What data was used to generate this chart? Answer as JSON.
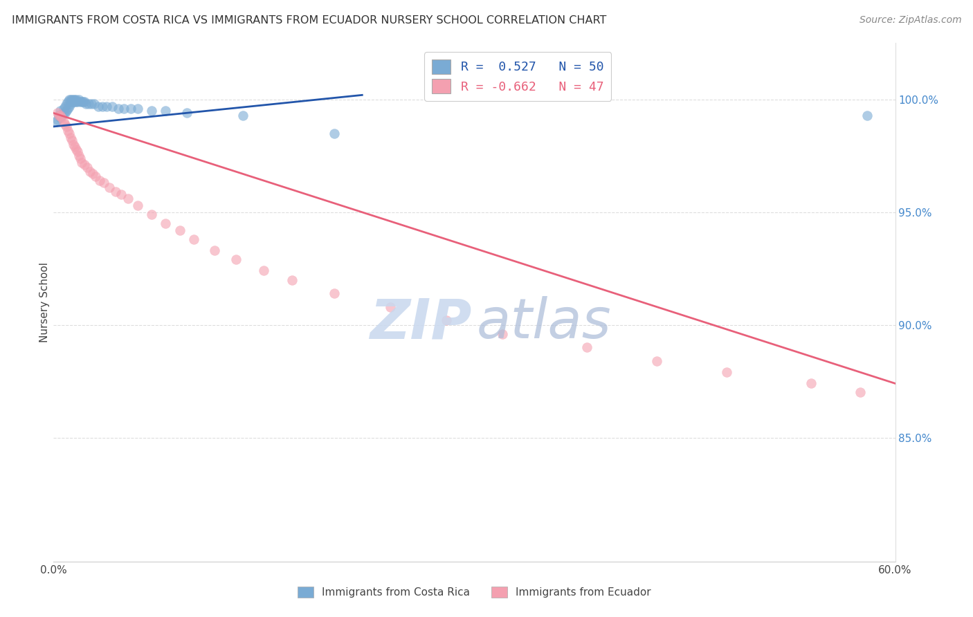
{
  "title": "IMMIGRANTS FROM COSTA RICA VS IMMIGRANTS FROM ECUADOR NURSERY SCHOOL CORRELATION CHART",
  "source_text": "Source: ZipAtlas.com",
  "ylabel": "Nursery School",
  "ytick_values": [
    1.0,
    0.95,
    0.9,
    0.85
  ],
  "xlim": [
    0.0,
    0.6
  ],
  "ylim": [
    0.795,
    1.025
  ],
  "blue_color": "#7AABD4",
  "pink_color": "#F4A0B0",
  "blue_line_color": "#2255AA",
  "pink_line_color": "#E8607A",
  "grid_color": "#DDDDDD",
  "background_color": "#FFFFFF",
  "blue_scatter_x": [
    0.002,
    0.003,
    0.004,
    0.005,
    0.005,
    0.006,
    0.007,
    0.007,
    0.008,
    0.008,
    0.009,
    0.009,
    0.01,
    0.01,
    0.011,
    0.011,
    0.012,
    0.012,
    0.013,
    0.013,
    0.014,
    0.014,
    0.015,
    0.015,
    0.016,
    0.016,
    0.017,
    0.018,
    0.019,
    0.02,
    0.021,
    0.022,
    0.023,
    0.025,
    0.027,
    0.029,
    0.032,
    0.035,
    0.038,
    0.042,
    0.046,
    0.05,
    0.055,
    0.06,
    0.07,
    0.08,
    0.095,
    0.135,
    0.2,
    0.58
  ],
  "blue_scatter_y": [
    0.99,
    0.991,
    0.993,
    0.992,
    0.995,
    0.993,
    0.994,
    0.996,
    0.994,
    0.997,
    0.995,
    0.998,
    0.996,
    0.999,
    0.997,
    1.0,
    0.998,
    1.0,
    0.999,
    1.0,
    0.999,
    1.0,
    0.999,
    1.0,
    0.999,
    1.0,
    0.999,
    1.0,
    0.999,
    0.999,
    0.999,
    0.999,
    0.998,
    0.998,
    0.998,
    0.998,
    0.997,
    0.997,
    0.997,
    0.997,
    0.996,
    0.996,
    0.996,
    0.996,
    0.995,
    0.995,
    0.994,
    0.993,
    0.985,
    0.993
  ],
  "pink_scatter_x": [
    0.003,
    0.004,
    0.005,
    0.006,
    0.007,
    0.008,
    0.009,
    0.01,
    0.011,
    0.012,
    0.013,
    0.014,
    0.015,
    0.016,
    0.017,
    0.018,
    0.019,
    0.02,
    0.022,
    0.024,
    0.026,
    0.028,
    0.03,
    0.033,
    0.036,
    0.04,
    0.044,
    0.048,
    0.053,
    0.06,
    0.07,
    0.08,
    0.09,
    0.1,
    0.115,
    0.13,
    0.15,
    0.17,
    0.2,
    0.24,
    0.28,
    0.32,
    0.38,
    0.43,
    0.48,
    0.54,
    0.575
  ],
  "pink_scatter_y": [
    0.994,
    0.993,
    0.993,
    0.992,
    0.99,
    0.989,
    0.988,
    0.986,
    0.985,
    0.983,
    0.982,
    0.98,
    0.979,
    0.978,
    0.977,
    0.975,
    0.974,
    0.972,
    0.971,
    0.97,
    0.968,
    0.967,
    0.966,
    0.964,
    0.963,
    0.961,
    0.959,
    0.958,
    0.956,
    0.953,
    0.949,
    0.945,
    0.942,
    0.938,
    0.933,
    0.929,
    0.924,
    0.92,
    0.914,
    0.908,
    0.902,
    0.896,
    0.89,
    0.884,
    0.879,
    0.874,
    0.87
  ],
  "blue_line_x": [
    0.0,
    0.22
  ],
  "blue_line_y": [
    0.988,
    1.002
  ],
  "pink_line_x": [
    0.0,
    0.6
  ],
  "pink_line_y": [
    0.994,
    0.874
  ],
  "legend_texts": [
    "R =  0.527   N = 50",
    "R = -0.662   N = 47"
  ],
  "legend_text_colors": [
    "#2255AA",
    "#E8607A"
  ],
  "watermark_zip_color": "#C8D8EE",
  "watermark_atlas_color": "#AABBD8"
}
